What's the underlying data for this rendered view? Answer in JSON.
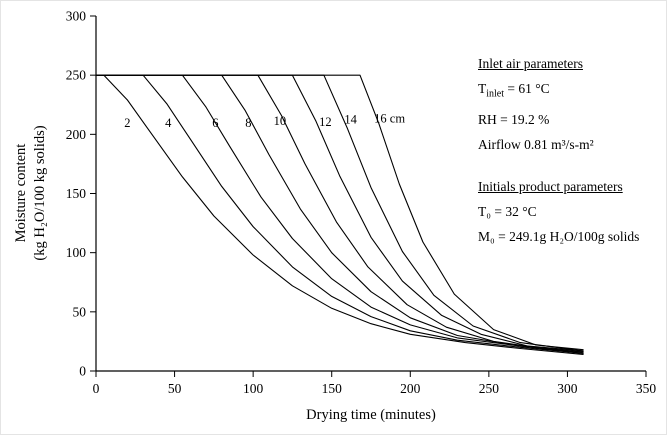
{
  "chart_data": {
    "type": "line",
    "title": "",
    "xlabel": "Drying time (minutes)",
    "ylabel_line1": "Moisture content",
    "ylabel_line2": "(kg H₂O/100 kg solids)",
    "xlim": [
      0,
      350
    ],
    "ylim": [
      0,
      300
    ],
    "x_ticks": [
      0,
      50,
      100,
      150,
      200,
      250,
      300,
      350
    ],
    "y_ticks": [
      0,
      50,
      100,
      150,
      200,
      250,
      300
    ],
    "grid": false,
    "legend_position": "on-curve labels",
    "line_color": "#000000",
    "axis_color": "#000000",
    "series": [
      {
        "name": "2 cm",
        "depth_cm": 2,
        "label": "2",
        "label_xy": [
          20,
          206
        ],
        "label_anchor": "middle",
        "points": [
          [
            0,
            250
          ],
          [
            5,
            250
          ],
          [
            20,
            229
          ],
          [
            35,
            201
          ],
          [
            55,
            164
          ],
          [
            75,
            131
          ],
          [
            100,
            98
          ],
          [
            125,
            72
          ],
          [
            150,
            53
          ],
          [
            175,
            40
          ],
          [
            200,
            31
          ],
          [
            235,
            24
          ],
          [
            270,
            19
          ],
          [
            310,
            14
          ]
        ]
      },
      {
        "name": "4 cm",
        "depth_cm": 4,
        "label": "4",
        "label_xy": [
          46,
          206
        ],
        "label_anchor": "middle",
        "points": [
          [
            0,
            250
          ],
          [
            30,
            250
          ],
          [
            45,
            226
          ],
          [
            60,
            196
          ],
          [
            80,
            156
          ],
          [
            100,
            122
          ],
          [
            125,
            88
          ],
          [
            150,
            63
          ],
          [
            175,
            46
          ],
          [
            200,
            34
          ],
          [
            230,
            26
          ],
          [
            270,
            20
          ],
          [
            310,
            15
          ]
        ]
      },
      {
        "name": "6 cm",
        "depth_cm": 6,
        "label": "6",
        "label_xy": [
          76,
          206
        ],
        "label_anchor": "middle",
        "points": [
          [
            0,
            250
          ],
          [
            55,
            250
          ],
          [
            70,
            223
          ],
          [
            85,
            190
          ],
          [
            105,
            147
          ],
          [
            125,
            112
          ],
          [
            150,
            78
          ],
          [
            175,
            54
          ],
          [
            200,
            39
          ],
          [
            230,
            28
          ],
          [
            270,
            21
          ],
          [
            310,
            15
          ]
        ]
      },
      {
        "name": "8 cm",
        "depth_cm": 8,
        "label": "8",
        "label_xy": [
          97,
          206
        ],
        "label_anchor": "middle",
        "points": [
          [
            0,
            250
          ],
          [
            80,
            250
          ],
          [
            95,
            220
          ],
          [
            110,
            183
          ],
          [
            130,
            137
          ],
          [
            150,
            100
          ],
          [
            175,
            67
          ],
          [
            200,
            45
          ],
          [
            230,
            30
          ],
          [
            270,
            21
          ],
          [
            310,
            16
          ]
        ]
      },
      {
        "name": "10 cm",
        "depth_cm": 10,
        "label": "10",
        "label_xy": [
          117,
          208
        ],
        "label_anchor": "middle",
        "points": [
          [
            0,
            250
          ],
          [
            103,
            250
          ],
          [
            118,
            216
          ],
          [
            133,
            175
          ],
          [
            153,
            126
          ],
          [
            173,
            88
          ],
          [
            198,
            56
          ],
          [
            223,
            37
          ],
          [
            253,
            25
          ],
          [
            285,
            19
          ],
          [
            310,
            16
          ]
        ]
      },
      {
        "name": "12 cm",
        "depth_cm": 12,
        "label": "12",
        "label_xy": [
          146,
          207
        ],
        "label_anchor": "middle",
        "points": [
          [
            0,
            250
          ],
          [
            125,
            250
          ],
          [
            140,
            211
          ],
          [
            155,
            165
          ],
          [
            175,
            113
          ],
          [
            195,
            76
          ],
          [
            220,
            47
          ],
          [
            245,
            31
          ],
          [
            275,
            21
          ],
          [
            310,
            17
          ]
        ]
      },
      {
        "name": "14 cm",
        "depth_cm": 14,
        "label": "14",
        "label_xy": [
          162,
          209
        ],
        "label_anchor": "middle",
        "points": [
          [
            0,
            250
          ],
          [
            145,
            250
          ],
          [
            160,
            205
          ],
          [
            175,
            155
          ],
          [
            195,
            101
          ],
          [
            215,
            64
          ],
          [
            240,
            38
          ],
          [
            270,
            24
          ],
          [
            310,
            17
          ]
        ]
      },
      {
        "name": "16 cm",
        "depth_cm": 16,
        "label": "16 cm",
        "label_xy": [
          177,
          210
        ],
        "label_anchor": "start",
        "points": [
          [
            0,
            250
          ],
          [
            168,
            250
          ],
          [
            180,
            209
          ],
          [
            193,
            158
          ],
          [
            208,
            109
          ],
          [
            228,
            65
          ],
          [
            253,
            35
          ],
          [
            280,
            22
          ],
          [
            310,
            18
          ]
        ]
      }
    ]
  },
  "annotations": {
    "inlet_header": "Inlet air parameters",
    "t_inlet_pre": "T",
    "t_inlet_sub": "inlet",
    "t_inlet_post": " = 61 °C",
    "rh": "RH = 19.2 %",
    "airflow": "Airflow 0.81 m³/s-m²",
    "product_header": "Initials product parameters",
    "t0": "T₀ = 32 °C",
    "m0": "M₀ = 249.1g H₂O/100g solids"
  }
}
